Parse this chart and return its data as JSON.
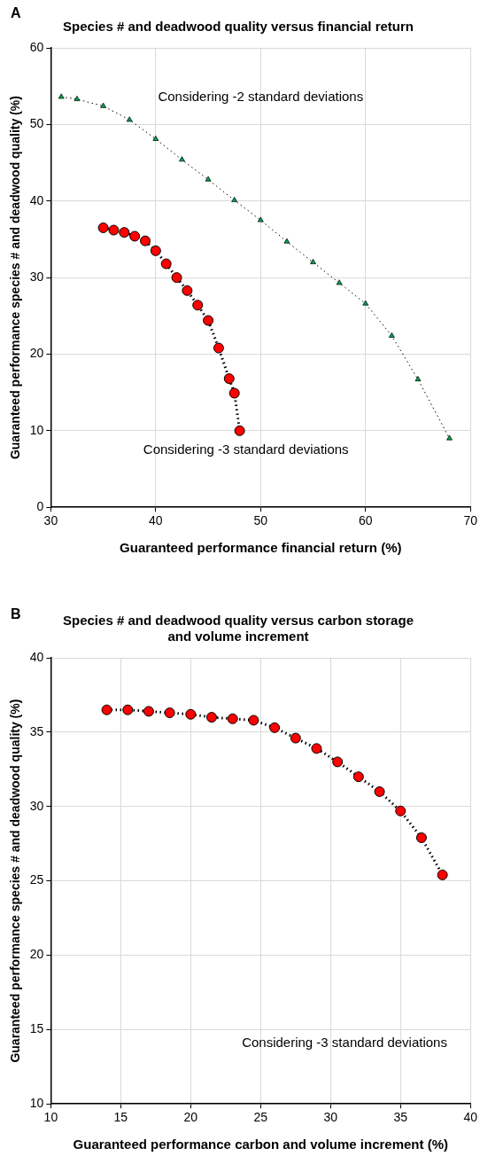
{
  "chart_data": [
    {
      "type": "scatter",
      "title": "Species # and deadwood quality versus financial return",
      "xlabel": "Guaranteed performance financial return (%)",
      "ylabel": "Guaranteed performance species # and deadwood quality (%)",
      "xlim": [
        30,
        70
      ],
      "xticks": [
        30,
        40,
        50,
        60,
        70
      ],
      "ylim": [
        0,
        60
      ],
      "yticks": [
        0,
        10,
        20,
        30,
        40,
        50,
        60
      ],
      "grid": true,
      "legend": false,
      "annotations": [
        "A",
        "Considering -2 standard deviations",
        "Considering -3 standard deviations"
      ],
      "series": [
        {
          "type": "line",
          "color": "#00a050",
          "marker": "triangle",
          "line_style": "dotted",
          "x": [
            31,
            32.5,
            35,
            37.5,
            40,
            42.5,
            45,
            47.5,
            50,
            52.5,
            55,
            57.5,
            60,
            62.5,
            65,
            68
          ],
          "values": [
            53.6,
            53.3,
            52.4,
            50.6,
            48.1,
            45.4,
            42.8,
            40.1,
            37.5,
            34.7,
            32,
            29.3,
            26.6,
            22.4,
            16.7,
            9
          ]
        },
        {
          "type": "line",
          "color": "#ff0000",
          "marker": "circle",
          "line_style": "dotted",
          "x": [
            35,
            36,
            37,
            38,
            39,
            40,
            41,
            42,
            43,
            44,
            45,
            46,
            47,
            47.5,
            48
          ],
          "values": [
            36.5,
            36.2,
            35.9,
            35.4,
            34.8,
            33.5,
            31.8,
            30,
            28.3,
            26.4,
            24.4,
            20.8,
            16.8,
            14.9,
            10
          ]
        }
      ]
    },
    {
      "type": "scatter",
      "title": "Species # and deadwood quality versus carbon storage and volume increment",
      "xlabel": "Guaranteed performance carbon and volume increment (%)",
      "ylabel": "Guaranteed performance species # and deadwood quality (%)",
      "xlim": [
        10,
        40
      ],
      "xticks": [
        10,
        15,
        20,
        25,
        30,
        35,
        40
      ],
      "ylim": [
        10,
        40
      ],
      "yticks": [
        10,
        15,
        20,
        25,
        30,
        35,
        40
      ],
      "grid": true,
      "legend": false,
      "annotations": [
        "B",
        "Considering -3 standard deviations"
      ],
      "series": [
        {
          "type": "line",
          "color": "#ff0000",
          "marker": "circle",
          "line_style": "dotted",
          "x": [
            14,
            15.5,
            17,
            18.5,
            20,
            21.5,
            23,
            24.5,
            26,
            27.5,
            29,
            30.5,
            32,
            33.5,
            35,
            36.5,
            38
          ],
          "values": [
            36.5,
            36.5,
            36.4,
            36.3,
            36.2,
            36,
            35.9,
            35.8,
            35.3,
            34.6,
            33.9,
            33,
            32,
            31,
            29.7,
            27.9,
            25.4
          ]
        }
      ]
    }
  ]
}
